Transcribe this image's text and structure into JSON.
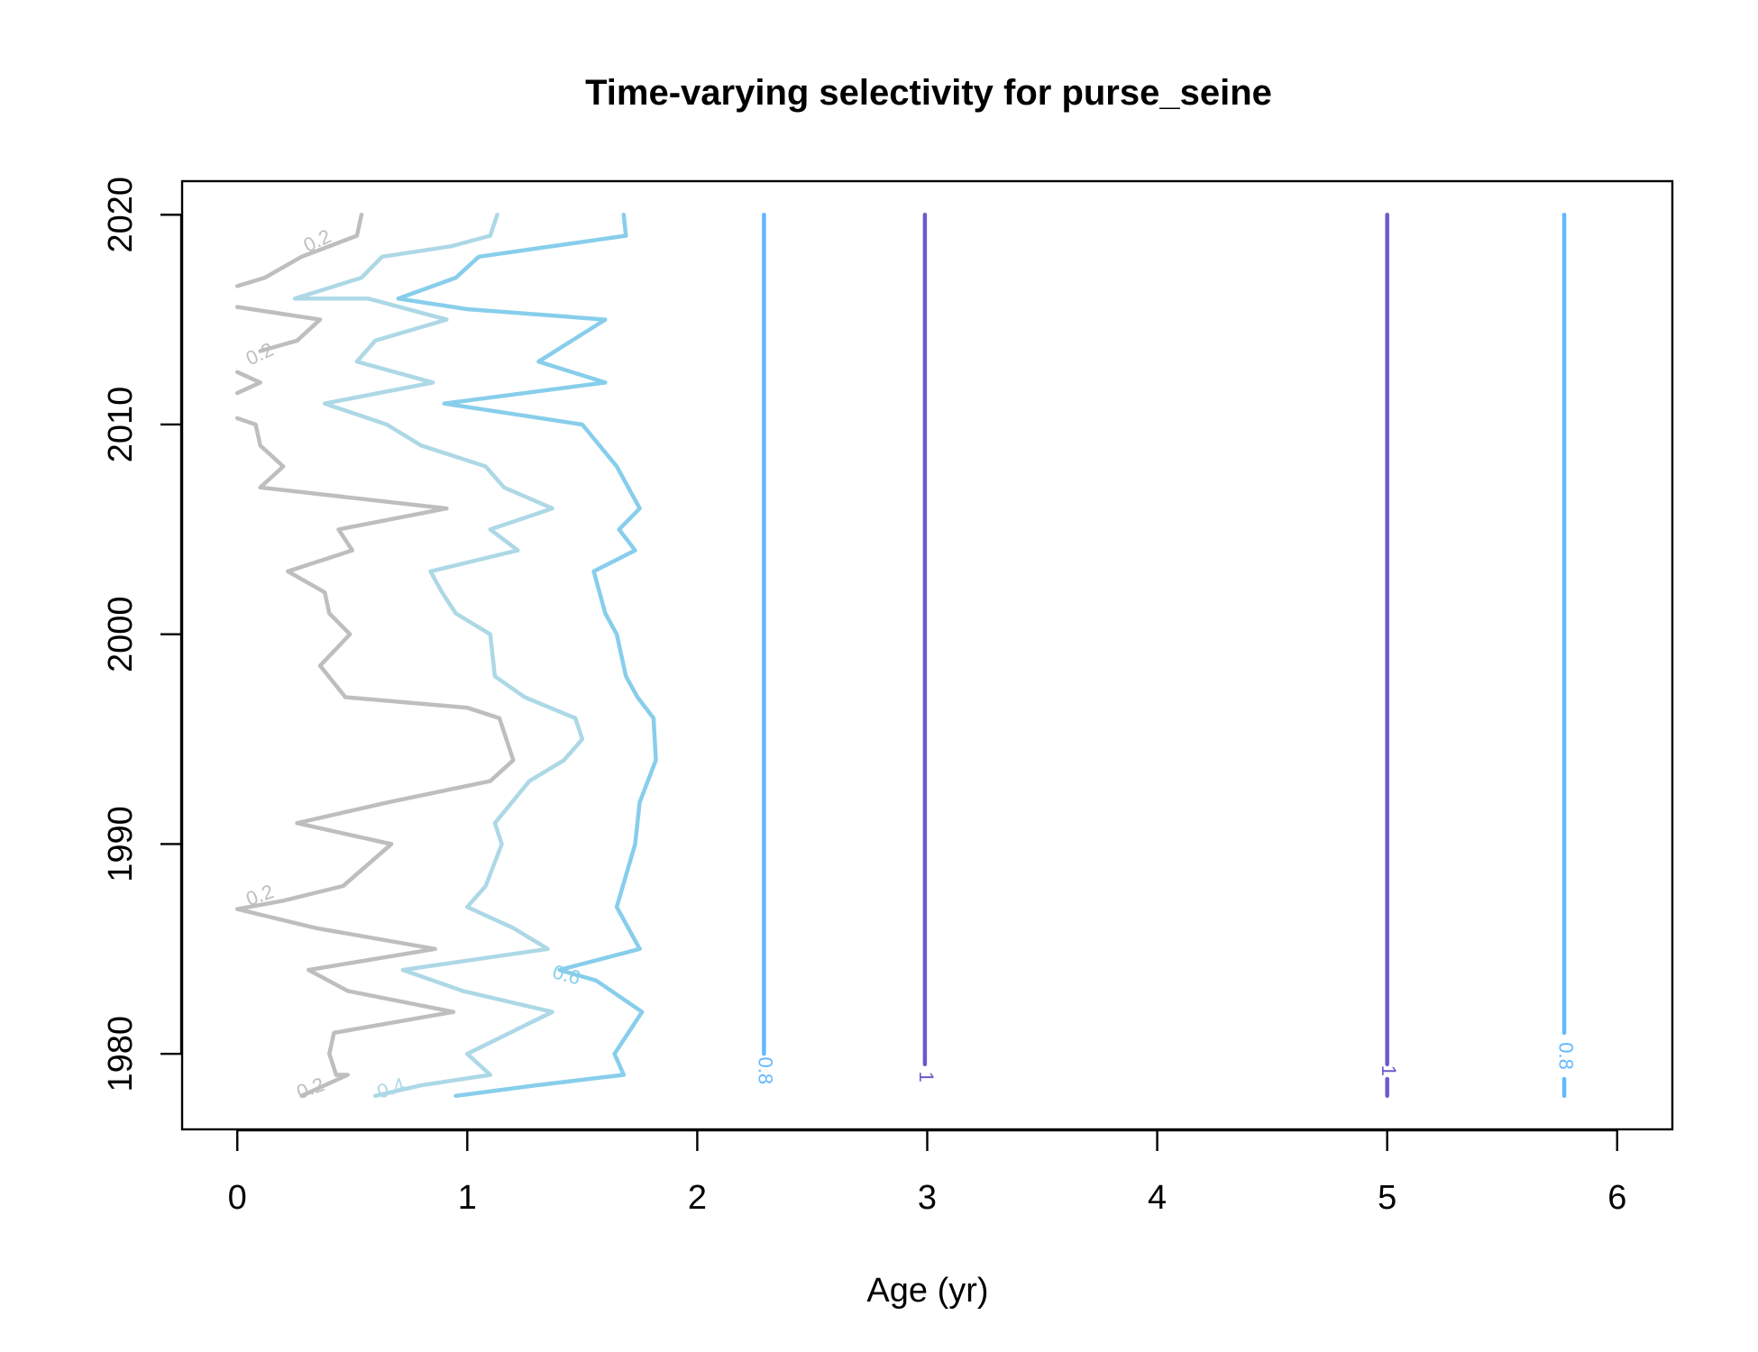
{
  "chart_data": {
    "type": "contour",
    "title": "Time-varying selectivity for purse_seine",
    "xlabel": "Age (yr)",
    "ylabel": "",
    "xlim": [
      -0.24,
      6.24
    ],
    "ylim": [
      1976.4,
      2021.6
    ],
    "x_ticks": [
      "0",
      "1",
      "2",
      "3",
      "4",
      "5",
      "6"
    ],
    "y_ticks": [
      "1980",
      "1990",
      "2000",
      "2010",
      "2020"
    ],
    "grid": false,
    "legend": "none",
    "levels": [
      {
        "level": 0.2,
        "label": "0.2",
        "color": "#bebebe"
      },
      {
        "level": 0.4,
        "label": "0.4",
        "color": "#add8e6"
      },
      {
        "level": 0.6,
        "label": "0.6",
        "color": "#87ceeb"
      },
      {
        "level": 0.8,
        "label": "0.8",
        "color": "#63b8ff"
      },
      {
        "level": 1.0,
        "label": "1",
        "color": "#6a5acd"
      }
    ],
    "series": [
      {
        "level": 0.2,
        "points": [
          [
            0.54,
            2020
          ],
          [
            0.52,
            2019
          ],
          [
            0.28,
            2018
          ],
          [
            0.12,
            2017
          ],
          [
            0.0,
            2016.6
          ]
        ]
      },
      {
        "level": 0.2,
        "points": [
          [
            0.0,
            2015.6
          ],
          [
            0.36,
            2015
          ],
          [
            0.26,
            2014
          ],
          [
            0.1,
            2013.5
          ]
        ]
      },
      {
        "level": 0.2,
        "points": [
          [
            0.0,
            2012.5
          ],
          [
            0.1,
            2012
          ],
          [
            0.0,
            2011.5
          ]
        ]
      },
      {
        "level": 0.2,
        "points": [
          [
            0.0,
            2010.3
          ],
          [
            0.08,
            2010
          ],
          [
            0.1,
            2009
          ],
          [
            0.2,
            2008
          ],
          [
            0.1,
            2007
          ],
          [
            0.91,
            2006
          ],
          [
            0.44,
            2005
          ],
          [
            0.5,
            2004
          ],
          [
            0.22,
            2003
          ],
          [
            0.38,
            2002
          ],
          [
            0.4,
            2001
          ],
          [
            0.49,
            2000
          ],
          [
            0.36,
            1998.5
          ],
          [
            0.47,
            1997
          ],
          [
            1.0,
            1996.5
          ],
          [
            1.14,
            1996
          ],
          [
            1.2,
            1994
          ],
          [
            1.1,
            1993
          ],
          [
            0.66,
            1992
          ],
          [
            0.26,
            1991
          ],
          [
            0.67,
            1990
          ],
          [
            0.46,
            1988
          ],
          [
            0.2,
            1987.3
          ],
          [
            0.0,
            1986.9
          ]
        ]
      },
      {
        "level": 0.2,
        "points": [
          [
            0.0,
            1986.9
          ],
          [
            0.34,
            1986
          ],
          [
            0.86,
            1985
          ],
          [
            0.31,
            1984
          ],
          [
            0.48,
            1983
          ],
          [
            0.94,
            1982
          ],
          [
            0.42,
            1981
          ],
          [
            0.4,
            1980
          ],
          [
            0.43,
            1979
          ],
          [
            0.48,
            1979
          ],
          [
            0.28,
            1978
          ]
        ]
      },
      {
        "level": 0.4,
        "points": [
          [
            1.13,
            2020
          ],
          [
            1.1,
            2019
          ],
          [
            0.93,
            2018.5
          ],
          [
            0.63,
            2018
          ],
          [
            0.54,
            2017
          ],
          [
            0.25,
            2016
          ],
          [
            0.57,
            2016
          ],
          [
            0.91,
            2015
          ],
          [
            0.6,
            2014
          ],
          [
            0.52,
            2013
          ],
          [
            0.85,
            2012
          ],
          [
            0.38,
            2011
          ],
          [
            0.65,
            2010
          ],
          [
            0.8,
            2009
          ],
          [
            1.08,
            2008
          ],
          [
            1.16,
            2007
          ],
          [
            1.37,
            2006
          ],
          [
            1.1,
            2005
          ],
          [
            1.22,
            2004
          ],
          [
            0.84,
            2003
          ],
          [
            0.89,
            2002
          ],
          [
            0.95,
            2001
          ],
          [
            1.1,
            2000
          ],
          [
            1.12,
            1998
          ],
          [
            1.25,
            1997
          ],
          [
            1.47,
            1996
          ],
          [
            1.5,
            1995
          ],
          [
            1.42,
            1994
          ],
          [
            1.27,
            1993
          ],
          [
            1.12,
            1991
          ],
          [
            1.15,
            1990
          ],
          [
            1.08,
            1988
          ],
          [
            1.0,
            1987
          ],
          [
            1.2,
            1986
          ],
          [
            1.35,
            1985
          ],
          [
            0.72,
            1984
          ],
          [
            0.98,
            1983
          ],
          [
            1.37,
            1982
          ],
          [
            1.0,
            1980
          ],
          [
            1.1,
            1979
          ],
          [
            0.8,
            1978.5
          ],
          [
            0.6,
            1978
          ]
        ]
      },
      {
        "level": 0.6,
        "points": [
          [
            1.68,
            2020
          ],
          [
            1.69,
            2019
          ],
          [
            1.05,
            2018
          ],
          [
            0.95,
            2017
          ],
          [
            0.7,
            2016
          ],
          [
            1.0,
            2015.5
          ],
          [
            1.6,
            2015
          ],
          [
            1.31,
            2013
          ],
          [
            1.6,
            2012
          ],
          [
            0.9,
            2011
          ],
          [
            1.5,
            2010
          ],
          [
            1.65,
            2008
          ],
          [
            1.75,
            2006
          ],
          [
            1.66,
            2005
          ],
          [
            1.73,
            2004
          ],
          [
            1.55,
            2003
          ],
          [
            1.6,
            2001
          ],
          [
            1.65,
            2000
          ],
          [
            1.69,
            1998
          ],
          [
            1.74,
            1997
          ],
          [
            1.81,
            1996
          ],
          [
            1.82,
            1994
          ],
          [
            1.75,
            1992
          ],
          [
            1.73,
            1990
          ],
          [
            1.65,
            1987
          ],
          [
            1.75,
            1985
          ],
          [
            1.4,
            1984
          ],
          [
            1.56,
            1983.5
          ],
          [
            1.76,
            1982
          ],
          [
            1.64,
            1980
          ],
          [
            1.68,
            1979
          ],
          [
            1.3,
            1978.5
          ],
          [
            0.95,
            1978
          ]
        ]
      },
      {
        "level": 0.8,
        "points": [
          [
            2.29,
            2020
          ],
          [
            2.29,
            1980
          ]
        ]
      },
      {
        "level": 1.0,
        "points": [
          [
            2.99,
            2020
          ],
          [
            2.99,
            1979.5
          ]
        ]
      },
      {
        "level": 1.0,
        "points": [
          [
            5.0,
            2020
          ],
          [
            5.0,
            1979.5
          ]
        ]
      },
      {
        "level": 1.0,
        "points": [
          [
            5.0,
            1978.8
          ],
          [
            5.0,
            1978
          ]
        ]
      },
      {
        "level": 0.8,
        "points": [
          [
            5.77,
            2020
          ],
          [
            5.77,
            1981
          ]
        ]
      },
      {
        "level": 0.8,
        "points": [
          [
            5.77,
            1978.8
          ],
          [
            5.77,
            1978
          ]
        ]
      }
    ],
    "contour_labels": [
      {
        "text": "0.2",
        "level": 0.2,
        "x": 0.35,
        "y": 2018.7,
        "angle": -25
      },
      {
        "text": "0.2",
        "level": 0.2,
        "x": 0.1,
        "y": 2013.3,
        "angle": -25
      },
      {
        "text": "0.2",
        "level": 0.2,
        "x": 0.1,
        "y": 1987.5,
        "angle": -20
      },
      {
        "text": "0.2",
        "level": 0.2,
        "x": 0.32,
        "y": 1978.3,
        "angle": -20
      },
      {
        "text": "0.4",
        "level": 0.4,
        "x": 0.67,
        "y": 1978.3,
        "angle": -18
      },
      {
        "text": "0.6",
        "level": 0.6,
        "x": 1.43,
        "y": 1983.7,
        "angle": 15
      },
      {
        "text": "0.8",
        "level": 0.8,
        "x": 2.29,
        "y": 1979.2,
        "angle": 90
      },
      {
        "text": "1",
        "level": 1.0,
        "x": 2.99,
        "y": 1978.9,
        "angle": 90
      },
      {
        "text": "1",
        "level": 1.0,
        "x": 5.0,
        "y": 1979.2,
        "angle": 90
      },
      {
        "text": "0.8",
        "level": 0.8,
        "x": 5.77,
        "y": 1979.9,
        "angle": 90
      }
    ]
  }
}
